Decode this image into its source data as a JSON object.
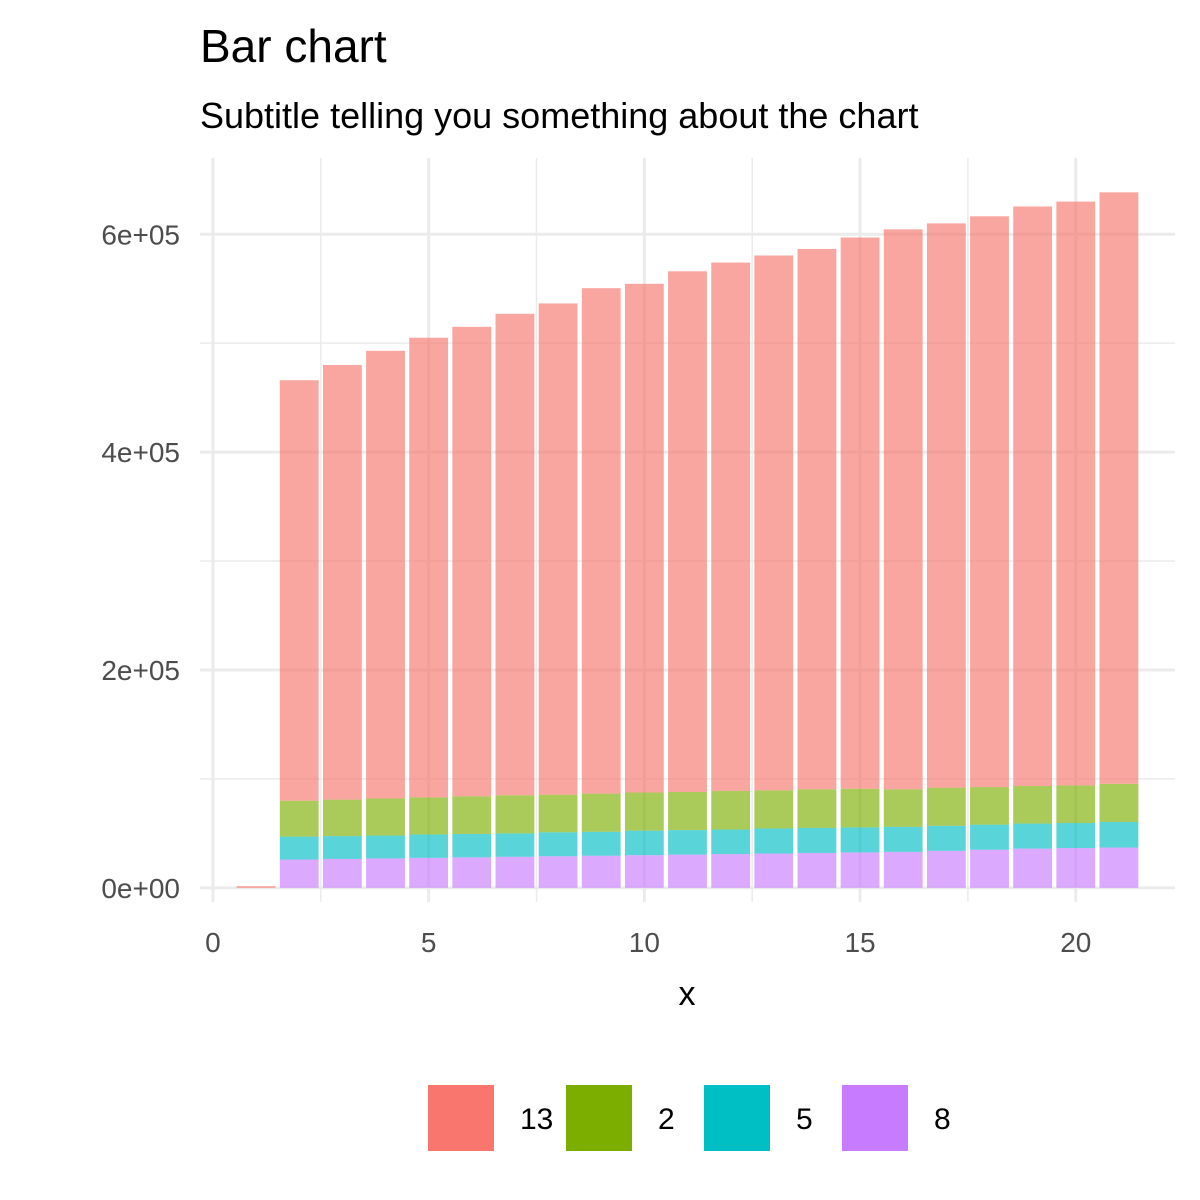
{
  "chart_data": {
    "type": "bar",
    "stacked": true,
    "title": "Bar chart",
    "subtitle": "Subtitle telling you something about the chart",
    "xlabel": "x",
    "ylabel": "",
    "xlim": [
      -0.3,
      22.3
    ],
    "ylim": [
      -13000,
      670000
    ],
    "x_ticks": [
      {
        "value": 0,
        "label": "0"
      },
      {
        "value": 5,
        "label": "5"
      },
      {
        "value": 10,
        "label": "10"
      },
      {
        "value": 15,
        "label": "15"
      },
      {
        "value": 20,
        "label": "20"
      }
    ],
    "y_ticks": [
      {
        "value": 0,
        "label": "0e+00"
      },
      {
        "value": 200000,
        "label": "2e+05"
      },
      {
        "value": 400000,
        "label": "4e+05"
      },
      {
        "value": 600000,
        "label": "6e+05"
      }
    ],
    "x": [
      1,
      2,
      3,
      4,
      5,
      6,
      7,
      8,
      9,
      10,
      11,
      12,
      13,
      14,
      15,
      16,
      17,
      18,
      19,
      20,
      21
    ],
    "stack_order_bottom_to_top": [
      "8",
      "5",
      "2",
      "13"
    ],
    "series": [
      {
        "name": "8",
        "color": "#C77CFF",
        "values": [
          0,
          26000,
          26500,
          27000,
          27500,
          28000,
          28500,
          29000,
          29500,
          30000,
          30500,
          31000,
          31500,
          32000,
          32500,
          33000,
          34000,
          35000,
          36000,
          36500,
          37000
        ]
      },
      {
        "name": "5",
        "color": "#00BFC4",
        "values": [
          0,
          21000,
          21000,
          21000,
          21500,
          21500,
          21500,
          22000,
          22000,
          22500,
          22500,
          22500,
          23000,
          23000,
          23000,
          23000,
          23000,
          23000,
          23000,
          23000,
          23500
        ]
      },
      {
        "name": "2",
        "color": "#7CAE00",
        "values": [
          0,
          33000,
          33500,
          34000,
          34000,
          34500,
          35000,
          34500,
          35000,
          35000,
          35000,
          35500,
          35000,
          35500,
          35500,
          34500,
          35000,
          34500,
          34500,
          34500,
          35000
        ]
      },
      {
        "name": "13",
        "color": "#F8766D",
        "values": [
          1500,
          386000,
          399000,
          411000,
          422000,
          431000,
          442000,
          451000,
          464000,
          467000,
          478000,
          485000,
          491000,
          496000,
          506000,
          514000,
          518000,
          524000,
          532000,
          536000,
          543000
        ]
      }
    ],
    "legend": {
      "position": "bottom",
      "entries": [
        {
          "label": "13",
          "color": "#F8766D"
        },
        {
          "label": "2",
          "color": "#7CAE00"
        },
        {
          "label": "5",
          "color": "#00BFC4"
        },
        {
          "label": "8",
          "color": "#C77CFF"
        }
      ]
    },
    "grid": true,
    "bar_opacity": 0.65
  }
}
